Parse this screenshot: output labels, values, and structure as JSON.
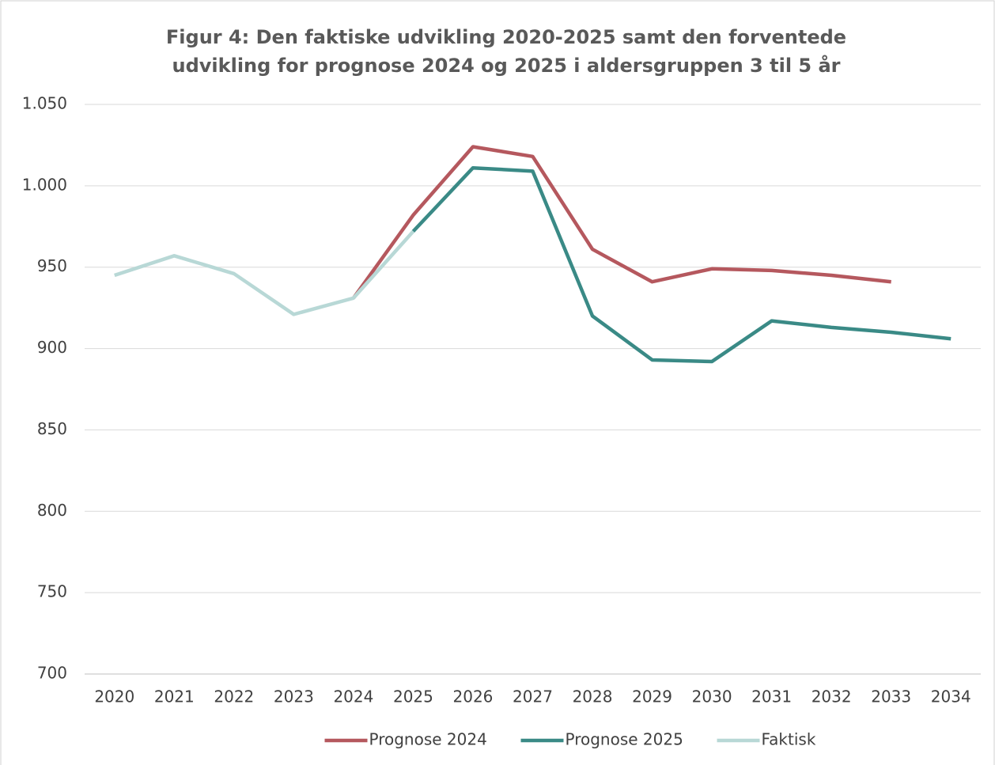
{
  "chart_data": {
    "type": "line",
    "title": [
      "Figur 4: Den faktiske udvikling 2020-2025 samt den forventede",
      "udvikling for prognose 2024 og 2025 i aldersgruppen 3 til 5 år"
    ],
    "categories": [
      "2020",
      "2021",
      "2022",
      "2023",
      "2024",
      "2025",
      "2026",
      "2027",
      "2028",
      "2029",
      "2030",
      "2031",
      "2032",
      "2033",
      "2034"
    ],
    "series": [
      {
        "name": "Prognose 2024",
        "color": "#b5585e",
        "values": [
          null,
          null,
          null,
          null,
          931,
          982,
          1024,
          1018,
          961,
          941,
          949,
          948,
          945,
          941,
          null
        ]
      },
      {
        "name": "Prognose 2025",
        "color": "#3a8a86",
        "values": [
          null,
          null,
          null,
          null,
          null,
          972,
          1011,
          1009,
          920,
          893,
          892,
          917,
          913,
          910,
          906
        ]
      },
      {
        "name": "Faktisk",
        "color": "#b8d8d6",
        "values": [
          945,
          957,
          946,
          921,
          931,
          972,
          null,
          null,
          null,
          null,
          null,
          null,
          null,
          null,
          null
        ]
      }
    ],
    "ylim": [
      700,
      1050
    ],
    "yticks": [
      700,
      750,
      800,
      850,
      900,
      950,
      {
        "value": 1000,
        "label": "1.000"
      },
      {
        "value": 1050,
        "label": "1.050"
      }
    ],
    "grid": true,
    "legend": "bottom"
  }
}
